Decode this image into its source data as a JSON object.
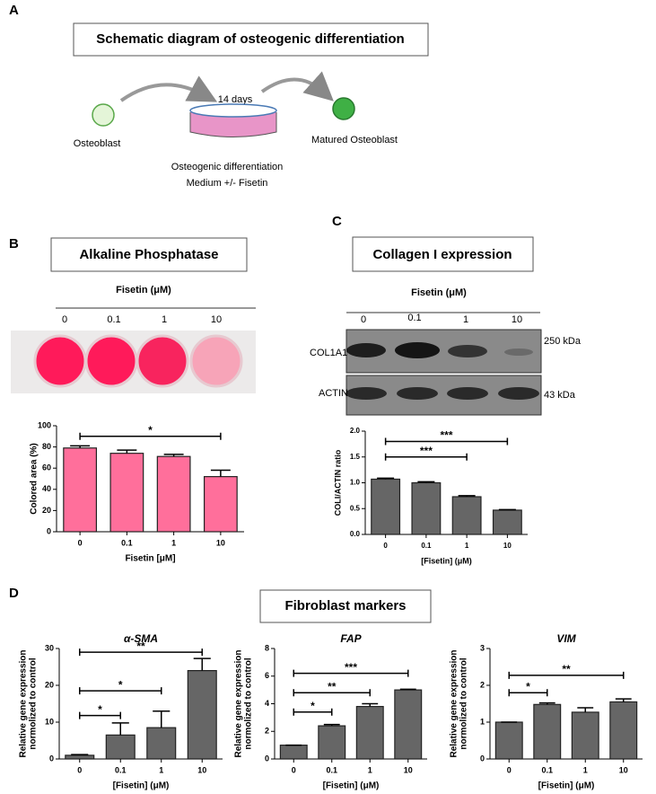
{
  "panels": [
    "A",
    "B",
    "C",
    "D"
  ],
  "diagram": {
    "title": "Schematic diagram of osteogenic differentiation",
    "start": "Osteoblast",
    "duration": "14 days",
    "end": "Matured Osteoblast",
    "medium_line1": "Osteogenic differentiation",
    "medium_line2": "Medium +/- Fisetin"
  },
  "panel_b": {
    "title": "Alkaline Phosphatase",
    "treatment": "Fisetin (μM)",
    "doses": [
      "0",
      "0.1",
      "1",
      "10"
    ]
  },
  "panel_c": {
    "title": "Collagen I expression",
    "treatment": "Fisetin (μM)",
    "doses": [
      "0",
      "0.1",
      "1",
      "10"
    ],
    "blots": [
      {
        "name": "COL1A1",
        "size": "250 kDa"
      },
      {
        "name": "ACTIN",
        "size": "43 kDa"
      }
    ]
  },
  "panel_d": {
    "title": "Fibroblast markers"
  },
  "chart_data": [
    {
      "type": "bar",
      "color": "#ff6f9b",
      "categories": [
        "0",
        "0.1",
        "1",
        "10"
      ],
      "values": [
        79,
        74,
        71,
        52
      ],
      "errors": [
        2,
        3,
        2,
        6
      ],
      "ylim": [
        0,
        100
      ],
      "yticks": [
        0,
        20,
        40,
        60,
        80,
        100
      ],
      "ylabel": [
        "Colored area (%)"
      ],
      "xlabel": "Fisetin [μM]",
      "annotations": [
        {
          "text": "*",
          "from": 0,
          "to": 3,
          "y": 90
        }
      ]
    },
    {
      "type": "bar",
      "color": "#666666",
      "categories": [
        "0",
        "0.1",
        "1",
        "10"
      ],
      "values": [
        1.07,
        1.0,
        0.73,
        0.47
      ],
      "errors": [
        0.02,
        0.02,
        0.02,
        0.01
      ],
      "ylim": [
        0,
        2
      ],
      "yticks": [
        {
          "value": 0,
          "label": "0.0"
        },
        {
          "value": 0.5,
          "label": "0.5"
        },
        {
          "value": 1,
          "label": "1.0"
        },
        {
          "value": 1.5,
          "label": "1.5"
        },
        {
          "value": 2,
          "label": "2.0"
        }
      ],
      "ylabel": [
        "COLI/ACTIN ratio"
      ],
      "xlabel": "[Fisetin] (μM)",
      "annotations": [
        {
          "text": "***",
          "from": 0,
          "to": 2,
          "y": 1.5
        },
        {
          "text": "***",
          "from": 0,
          "to": 3,
          "y": 1.8
        }
      ]
    },
    {
      "type": "bar",
      "title": "α-SMA",
      "color": "#666666",
      "categories": [
        "0",
        "0.1",
        "1",
        "10"
      ],
      "values": [
        1,
        6.5,
        8.5,
        24
      ],
      "errors": [
        0.2,
        3.3,
        4.5,
        3.3
      ],
      "ylim": [
        0,
        30
      ],
      "yticks": [
        0,
        10,
        20,
        30
      ],
      "ylabel": [
        "Relative gene expression",
        "normolized to control"
      ],
      "xlabel": "[Fisetin] (μM)",
      "annotations": [
        {
          "text": "*",
          "from": 0,
          "to": 1,
          "y": 11.8
        },
        {
          "text": "*",
          "from": 0,
          "to": 2,
          "y": 18.5
        },
        {
          "text": "**",
          "from": 0,
          "to": 3,
          "y": 29
        }
      ]
    },
    {
      "type": "bar",
      "title": "FAP",
      "color": "#666666",
      "categories": [
        "0",
        "0.1",
        "1",
        "10"
      ],
      "values": [
        1,
        2.4,
        3.8,
        5.0
      ],
      "errors": [
        0,
        0.1,
        0.2,
        0.05
      ],
      "ylim": [
        0,
        8
      ],
      "yticks": [
        0,
        2,
        4,
        6,
        8
      ],
      "ylabel": [
        "Relative gene expression",
        "normolized to control"
      ],
      "xlabel": "[Fisetin] (μM)",
      "annotations": [
        {
          "text": "*",
          "from": 0,
          "to": 1,
          "y": 3.4
        },
        {
          "text": "**",
          "from": 0,
          "to": 2,
          "y": 4.8
        },
        {
          "text": "***",
          "from": 0,
          "to": 3,
          "y": 6.2
        }
      ]
    },
    {
      "type": "bar",
      "title": "VIM",
      "color": "#666666",
      "categories": [
        "0",
        "0.1",
        "1",
        "10"
      ],
      "values": [
        1,
        1.48,
        1.27,
        1.55
      ],
      "errors": [
        0,
        0.04,
        0.12,
        0.08
      ],
      "ylim": [
        0,
        3
      ],
      "yticks": [
        0,
        1,
        2,
        3
      ],
      "ylabel": [
        "Relative gene expression",
        "normolized to control"
      ],
      "xlabel": "[Fisetin] (μM)",
      "annotations": [
        {
          "text": "*",
          "from": 0,
          "to": 1,
          "y": 1.8
        },
        {
          "text": "**",
          "from": 0,
          "to": 3,
          "y": 2.27
        }
      ]
    }
  ]
}
